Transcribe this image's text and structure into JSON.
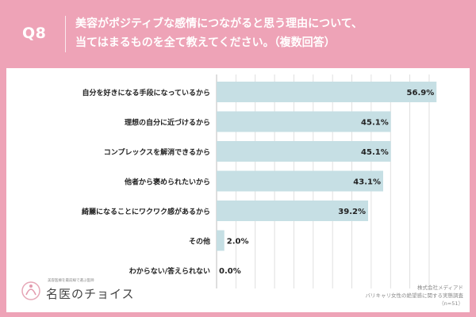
{
  "header": {
    "qnum": "Q8",
    "line1": "美容がポジティブな感情につながると思う理由について、",
    "line2": "当てはまるものを全て教えてください。（複数回答）"
  },
  "logo": {
    "small": "美容医療を最前線で選ぶ医師",
    "name": "名医のチョイス"
  },
  "source": {
    "company": "株式会社メディアド",
    "survey": "バリキャリ女性の絶望感に関する実態調査",
    "n": "（n=51）"
  },
  "colors": {
    "background": "#eea3b7",
    "bar": "#c6dfe4",
    "grid": "#d8d8d8"
  },
  "chart_data": {
    "type": "bar",
    "orientation": "horizontal",
    "categories": [
      "自分を好きになる手段になっているから",
      "理想の自分に近づけるから",
      "コンプレックスを解消できるから",
      "他者から褒められたいから",
      "綺麗になることにワクワク感があるから",
      "その他",
      "わからない/答えられない"
    ],
    "values": [
      56.9,
      45.1,
      45.1,
      43.1,
      39.2,
      2.0,
      0.0
    ],
    "value_labels": [
      "56.9%",
      "45.1%",
      "45.1%",
      "43.1%",
      "39.2%",
      "2.0%",
      "0.0%"
    ],
    "xlim": [
      0,
      60
    ],
    "grid": true
  }
}
